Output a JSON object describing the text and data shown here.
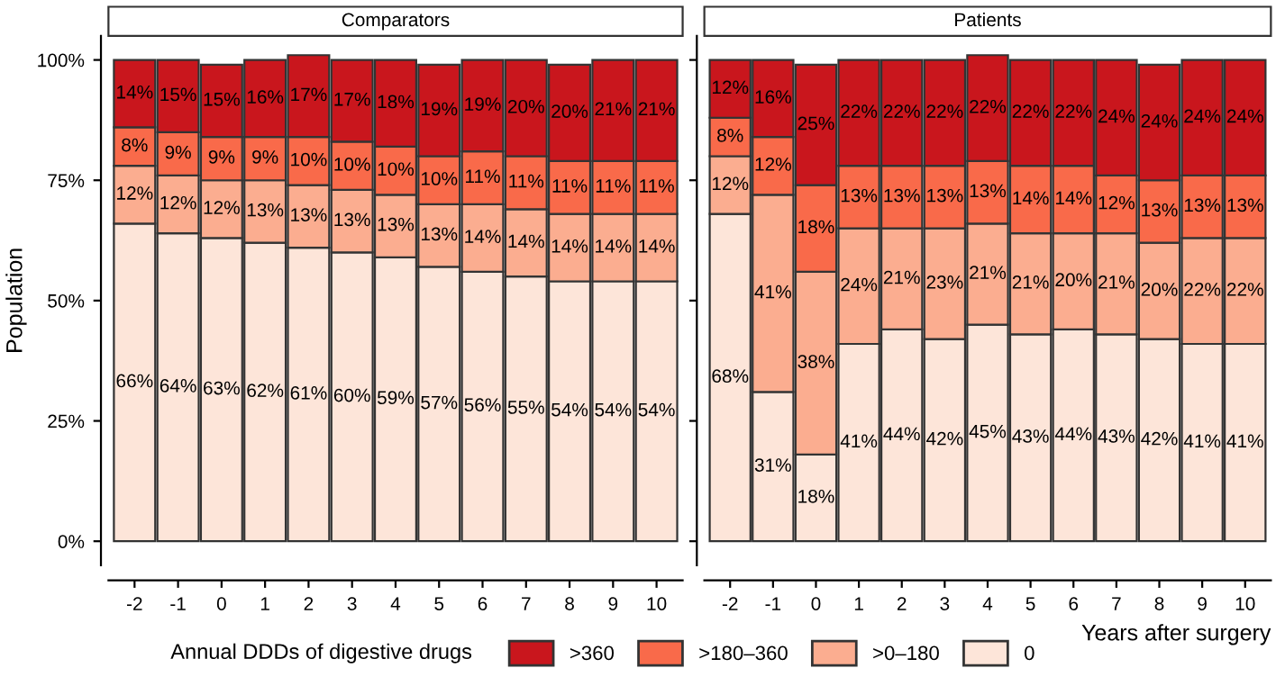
{
  "chart_data": [
    {
      "type": "bar",
      "title": "Comparators",
      "ylabel": "Population",
      "legend_title": "Annual DDDs of digestive drugs",
      "legend": "bottom",
      "stacked": true,
      "categories": [
        "-2",
        "-1",
        "0",
        "1",
        "2",
        "3",
        "4",
        "5",
        "6",
        "7",
        "8",
        "9",
        "10"
      ],
      "ylim": [
        -5,
        105
      ],
      "yticks": [
        {
          "value": 0,
          "label": "0%"
        },
        {
          "value": 25,
          "label": "25%"
        },
        {
          "value": 50,
          "label": "50%"
        },
        {
          "value": 75,
          "label": "75%"
        },
        {
          "value": 100,
          "label": "100%"
        }
      ],
      "series": [
        {
          "name": "0",
          "color": "#fde5d9",
          "values": [
            66,
            64,
            63,
            62,
            61,
            60,
            59,
            57,
            56,
            55,
            54,
            54,
            54
          ],
          "value_labels": [
            "66%",
            "64%",
            "63%",
            "62%",
            "61%",
            "60%",
            "59%",
            "57%",
            "56%",
            "55%",
            "54%",
            "54%",
            "54%"
          ]
        },
        {
          "name": ">0–180",
          "color": "#fbad90",
          "values": [
            12,
            12,
            12,
            13,
            13,
            13,
            13,
            13,
            14,
            14,
            14,
            14,
            14
          ],
          "value_labels": [
            "12%",
            "12%",
            "12%",
            "13%",
            "13%",
            "13%",
            "13%",
            "13%",
            "14%",
            "14%",
            "14%",
            "14%",
            "14%"
          ]
        },
        {
          "name": ">180–360",
          "color": "#f96a4a",
          "values": [
            8,
            9,
            9,
            9,
            10,
            10,
            10,
            10,
            11,
            11,
            11,
            11,
            11
          ],
          "value_labels": [
            "8%",
            "9%",
            "9%",
            "9%",
            "10%",
            "10%",
            "10%",
            "10%",
            "11%",
            "11%",
            "11%",
            "11%",
            "11%"
          ]
        },
        {
          "name": ">360",
          "color": "#c9161d",
          "values": [
            14,
            15,
            15,
            16,
            17,
            17,
            18,
            19,
            19,
            20,
            20,
            21,
            21
          ],
          "value_labels": [
            "14%",
            "15%",
            "15%",
            "16%",
            "17%",
            "17%",
            "18%",
            "19%",
            "19%",
            "20%",
            "20%",
            "21%",
            "21%"
          ]
        }
      ]
    },
    {
      "type": "bar",
      "title": "Patients",
      "xlabel": "Years after surgery",
      "stacked": true,
      "tick_labels": "x",
      "categories": [
        "-2",
        "-1",
        "0",
        "1",
        "2",
        "3",
        "4",
        "5",
        "6",
        "7",
        "8",
        "9",
        "10"
      ],
      "ylim": [
        -5,
        105
      ],
      "yticks": [
        {
          "value": 0,
          "label": null
        },
        {
          "value": 25,
          "label": null
        },
        {
          "value": 50,
          "label": null
        },
        {
          "value": 75,
          "label": null
        },
        {
          "value": 100,
          "label": null
        }
      ],
      "series": [
        {
          "color": "#fde5d9",
          "values": [
            68,
            31,
            18,
            41,
            44,
            42,
            45,
            43,
            44,
            43,
            42,
            41,
            41
          ],
          "value_labels": [
            "68%",
            "31%",
            "18%",
            "41%",
            "44%",
            "42%",
            "45%",
            "43%",
            "44%",
            "43%",
            "42%",
            "41%",
            "41%"
          ]
        },
        {
          "color": "#fbad90",
          "values": [
            12,
            41,
            38,
            24,
            21,
            23,
            21,
            21,
            20,
            21,
            20,
            22,
            22
          ],
          "value_labels": [
            "12%",
            "41%",
            "38%",
            "24%",
            "21%",
            "23%",
            "21%",
            "21%",
            "20%",
            "21%",
            "20%",
            "22%",
            "22%"
          ]
        },
        {
          "color": "#f96a4a",
          "values": [
            8,
            12,
            18,
            13,
            13,
            13,
            13,
            14,
            14,
            12,
            13,
            13,
            13
          ],
          "value_labels": [
            "8%",
            "12%",
            "18%",
            "13%",
            "13%",
            "13%",
            "13%",
            "14%",
            "14%",
            "12%",
            "13%",
            "13%",
            "13%"
          ]
        },
        {
          "color": "#c9161d",
          "values": [
            12,
            16,
            25,
            22,
            22,
            22,
            22,
            22,
            22,
            24,
            24,
            24,
            24
          ],
          "value_labels": [
            "12%",
            "16%",
            "25%",
            "22%",
            "22%",
            "22%",
            "22%",
            "22%",
            "22%",
            "24%",
            "24%",
            "24%",
            "24%"
          ]
        }
      ]
    }
  ]
}
